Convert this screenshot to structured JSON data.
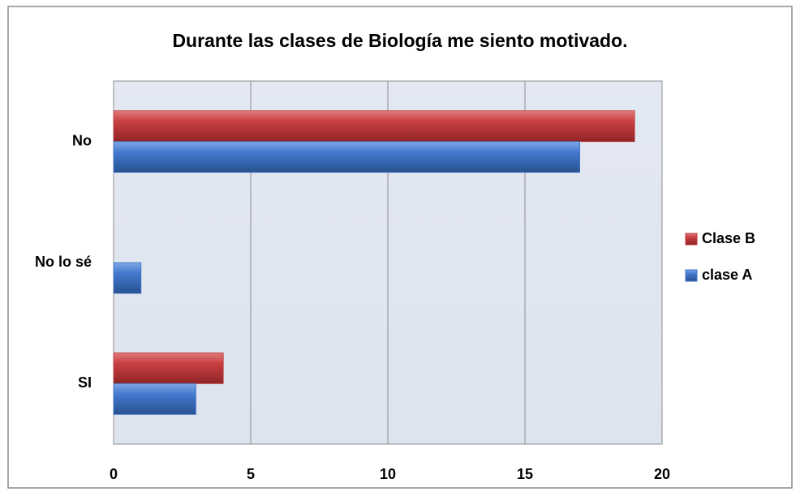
{
  "chart_data": {
    "type": "bar",
    "orientation": "horizontal",
    "title": "Durante las clases de Biología me siento motivado.",
    "categories": [
      "No",
      "No lo sé",
      "SI"
    ],
    "series": [
      {
        "name": "Clase B",
        "color": "#c0393b",
        "values": [
          19,
          0,
          4
        ]
      },
      {
        "name": "clase A",
        "color": "#3d72c8",
        "values": [
          17,
          1,
          3
        ]
      }
    ],
    "xlim": [
      0,
      20
    ],
    "xticks": [
      0,
      5,
      10,
      15,
      20
    ],
    "grid": true,
    "legend": "right"
  }
}
